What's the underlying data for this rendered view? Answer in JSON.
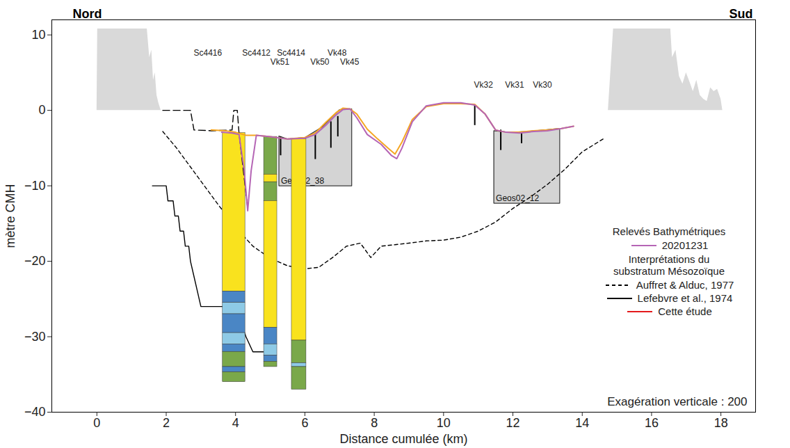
{
  "chart_data": {
    "type": "line",
    "x_label": "Distance cumulée (km)",
    "y_label": "mètre CMH",
    "xlim": [
      -1.3,
      19
    ],
    "xticks": [
      0,
      2,
      4,
      6,
      8,
      10,
      12,
      14,
      16,
      18
    ],
    "ylim": [
      -40,
      12
    ],
    "yticks": [
      -40,
      -30,
      -20,
      -10,
      0,
      10
    ],
    "corner_labels": {
      "left": "Nord",
      "right": "Sud"
    },
    "annotations": [
      {
        "text": "Exagération verticale : 200"
      }
    ],
    "legend": "right",
    "legend_groups": [
      {
        "title": "Relevés Bathymétriques",
        "series": [
          "20201231"
        ]
      },
      {
        "title": "Interprétations du substratum Mésozoïque",
        "series": [
          "Auffret & Alduc, 1977",
          "Lefebvre et al., 1974",
          "Cette étude"
        ]
      }
    ],
    "series": [
      {
        "type": "area",
        "color": "#d9d9d9",
        "x": [
          0,
          0.02,
          1.45,
          1.52,
          1.58,
          1.63,
          1.68,
          1.73,
          1.78,
          1.85
        ],
        "values": [
          0,
          10.8,
          10.8,
          7,
          8,
          4,
          5,
          2,
          1,
          0
        ]
      },
      {
        "type": "area",
        "color": "#d9d9d9",
        "x": [
          14.75,
          14.9,
          16.55,
          16.6,
          16.7,
          16.8,
          16.9,
          17.0,
          17.1,
          17.2,
          17.3,
          17.4,
          17.5,
          17.6,
          17.7,
          17.8,
          17.9,
          18.0,
          18.05
        ],
        "values": [
          0,
          10.8,
          10.8,
          7,
          8,
          4.5,
          3.5,
          5,
          3.8,
          2.5,
          4,
          2,
          1.5,
          1.2,
          3,
          2.5,
          2.8,
          1.5,
          0
        ]
      },
      {
        "name": "Auffret & Alduc, 1977",
        "type": "line",
        "color": "#000000",
        "line_style": "dashed",
        "x": [
          1.9,
          2.3,
          2.7,
          3.1,
          3.5,
          4.0,
          4.5,
          5.0,
          5.5,
          6.0,
          6.4,
          6.8,
          7.2,
          7.6,
          7.9,
          8.2,
          8.6,
          9.0,
          9.5,
          10.0,
          10.5,
          11.0,
          11.5,
          12.0,
          12.5,
          13.0,
          13.5,
          14.0,
          14.6
        ],
        "values": [
          -2.8,
          -5,
          -7.5,
          -10,
          -12.5,
          -15.5,
          -18,
          -19.6,
          -20.6,
          -21,
          -20.8,
          -19.5,
          -18,
          -17.6,
          -19.5,
          -18,
          -17.8,
          -17.6,
          -17.3,
          -17.2,
          -16.8,
          -16,
          -14.8,
          -13,
          -11.5,
          -9.8,
          -7.8,
          -5.5,
          -3.8
        ]
      },
      {
        "name": "Lefebvre et al., 1974",
        "type": "line",
        "color": "#000000",
        "line_style": "solid",
        "x": [
          1.6,
          2.0,
          2.05,
          2.2,
          2.25,
          2.35,
          2.4,
          2.5,
          2.55,
          2.65,
          2.7,
          2.8,
          2.9,
          3.0,
          3.6,
          4.0,
          4.3,
          4.5,
          4.8
        ],
        "values": [
          -10,
          -10,
          -12,
          -12,
          -14,
          -14,
          -16,
          -16,
          -18,
          -18,
          -20,
          -22,
          -24,
          -26,
          -26,
          -26,
          -30,
          -32,
          -32
        ]
      },
      {
        "name": "Cette étude",
        "type": "line",
        "color": "#e41a1c",
        "line_style": "solid",
        "x": [],
        "values": []
      },
      {
        "type": "line",
        "color": "#000000",
        "line_style": "longdash",
        "x": [
          1.9,
          2.7,
          2.8,
          3.3,
          3.9,
          3.95,
          4.05,
          4.1,
          4.2,
          4.3,
          4.35
        ],
        "values": [
          0,
          0,
          -2.6,
          -2.7,
          -2.6,
          0,
          0,
          -3,
          -7,
          -11,
          -13
        ]
      },
      {
        "type": "line",
        "color": "#f5a623",
        "line_style": "solid",
        "x": [
          3.3,
          3.7,
          4.0,
          4.3,
          4.6,
          5.0,
          5.5,
          6.0,
          6.3,
          6.6,
          6.9,
          7.1,
          7.3,
          7.5,
          7.8,
          8.1,
          8.4,
          8.6,
          8.8,
          9.1,
          9.5,
          10.0,
          10.5,
          10.9,
          11.2,
          11.5,
          11.8,
          12.2,
          12.6,
          13.0,
          13.4,
          13.75
        ],
        "values": [
          -2.6,
          -2.7,
          -2.9,
          -3.3,
          -3.3,
          -3.5,
          -3.8,
          -3.6,
          -3.0,
          -1.6,
          -0.3,
          0.3,
          0.2,
          -0.5,
          -2.5,
          -3.8,
          -5,
          -5.8,
          -4.2,
          -1.2,
          0.5,
          0.9,
          0.9,
          0.8,
          -0.5,
          -2.6,
          -2.9,
          -2.9,
          -2.7,
          -2.6,
          -2.4,
          -2.1
        ]
      },
      {
        "name": "20201231",
        "type": "line",
        "color": "#b565b5",
        "line_style": "solid",
        "x": [
          3.6,
          3.9,
          4.1,
          4.25,
          4.35,
          4.45,
          4.6,
          5.0,
          5.5,
          6.0,
          6.3,
          6.6,
          6.9,
          7.1,
          7.3,
          7.5,
          7.8,
          8.2,
          8.5,
          8.65,
          8.8,
          9.1,
          9.5,
          10.0,
          10.5,
          10.9,
          11.2,
          11.5,
          11.8,
          12.2,
          12.6,
          13.0,
          13.4,
          13.75
        ],
        "values": [
          -2.9,
          -3.0,
          -3.2,
          -8,
          -13.3,
          -8,
          -3.3,
          -3.5,
          -3.8,
          -3.7,
          -3.2,
          -2,
          -0.6,
          0.1,
          0.2,
          -1,
          -3.2,
          -4.5,
          -6,
          -6.4,
          -5,
          -1.5,
          0.6,
          1.0,
          1.0,
          0.7,
          -0.5,
          -2.6,
          -2.9,
          -3,
          -2.8,
          -2.7,
          -2.4,
          -2.1
        ]
      }
    ],
    "sections": [
      {
        "label": "Geos02_38",
        "color": "#d4d4d4",
        "x": [
          5.25,
          5.5,
          6.0,
          6.5,
          7.0,
          7.35
        ],
        "top": [
          -3.4,
          -3.8,
          -3.6,
          -2.2,
          0.1,
          0.2
        ],
        "bottom": -10
      },
      {
        "label": "Geos02_12",
        "color": "#d4d4d4",
        "x": [
          11.45,
          11.9,
          12.4,
          12.9,
          13.35
        ],
        "top": [
          -2.7,
          -2.9,
          -2.8,
          -2.6,
          -2.4
        ],
        "bottom": -12.3
      }
    ],
    "boreholes": [
      {
        "label": "Sc4416",
        "label_x": 3.2,
        "label_y": 7.6,
        "x1": 3.63,
        "x2": 4.28,
        "layers": [
          {
            "top": -3,
            "bottom": -24,
            "color": "#f9e21e"
          },
          {
            "top": -24,
            "bottom": -25.5,
            "color": "#4a86c5"
          },
          {
            "top": -25.5,
            "bottom": -27,
            "color": "#8ecae6"
          },
          {
            "top": -27,
            "bottom": -29.5,
            "color": "#4a86c5"
          },
          {
            "top": -29.5,
            "bottom": -31,
            "color": "#8ecae6"
          },
          {
            "top": -31,
            "bottom": -32,
            "color": "#4a86c5"
          },
          {
            "top": -32,
            "bottom": -34,
            "color": "#7aa84a"
          },
          {
            "top": -34,
            "bottom": -34.7,
            "color": "#4a86c5"
          },
          {
            "top": -34.7,
            "bottom": -36,
            "color": "#7aa84a"
          }
        ]
      },
      {
        "label": "Sc4412",
        "label_x": 4.6,
        "label_y": 7.6,
        "x1": 4.82,
        "x2": 5.2,
        "layers": [
          {
            "top": -3.5,
            "bottom": -8.5,
            "color": "#7aa84a"
          },
          {
            "top": -8.5,
            "bottom": -9.5,
            "color": "#f9e21e"
          },
          {
            "top": -9.5,
            "bottom": -12,
            "color": "#7aa84a"
          },
          {
            "top": -12,
            "bottom": -28.8,
            "color": "#f9e21e"
          },
          {
            "top": -28.8,
            "bottom": -31,
            "color": "#4a86c5"
          },
          {
            "top": -31,
            "bottom": -32.5,
            "color": "#8ecae6"
          },
          {
            "top": -32.5,
            "bottom": -33.3,
            "color": "#4a86c5"
          },
          {
            "top": -33.3,
            "bottom": -34,
            "color": "#7aa84a"
          }
        ]
      },
      {
        "label": "Sc4414",
        "label_x": 5.6,
        "label_y": 7.6,
        "x1": 5.62,
        "x2": 6.04,
        "layers": [
          {
            "top": -3.8,
            "bottom": -30.5,
            "color": "#f9e21e"
          },
          {
            "top": -30.5,
            "bottom": -33.5,
            "color": "#7aa84a"
          },
          {
            "top": -33.5,
            "bottom": -34,
            "color": "#8ecae6"
          },
          {
            "top": -34,
            "bottom": -37,
            "color": "#7aa84a"
          }
        ]
      }
    ],
    "cores": [
      {
        "label": "Vk51",
        "x": 5.3,
        "top": -3.5,
        "bottom": -6,
        "label_x": 5.28,
        "label_y": 6.4
      },
      {
        "label": "Vk50",
        "x": 6.3,
        "top": -3.2,
        "bottom": -6.5,
        "label_x": 6.43,
        "label_y": 6.4
      },
      {
        "label": "Vk48",
        "x": 6.75,
        "top": -1.5,
        "bottom": -5,
        "label_x": 6.93,
        "label_y": 7.6
      },
      {
        "label": "Vk45",
        "x": 6.95,
        "top": -0.8,
        "bottom": -3.5,
        "label_x": 7.29,
        "label_y": 6.4
      },
      {
        "label": "Vk32",
        "x": 10.9,
        "top": 0.7,
        "bottom": -2,
        "label_x": 11.15,
        "label_y": 3.4
      },
      {
        "label": "Vk31",
        "x": 11.65,
        "top": -2.6,
        "bottom": -5.3,
        "label_x": 12.05,
        "label_y": 3.4
      },
      {
        "label": "Vk30",
        "x": 12.25,
        "top": -2.9,
        "bottom": -4.4,
        "label_x": 12.85,
        "label_y": 3.4
      }
    ]
  }
}
